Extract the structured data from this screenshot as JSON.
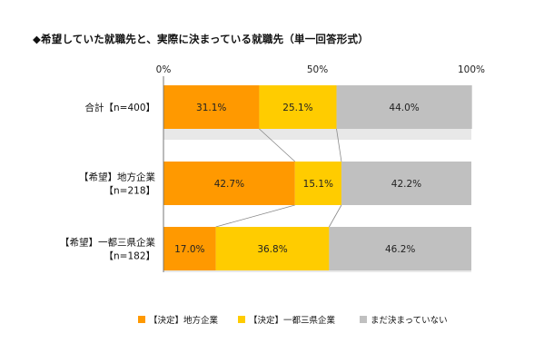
{
  "chart_data": {
    "type": "bar",
    "orientation": "horizontal",
    "stacked": "percent",
    "title": "◆希望していた就職先と、実際に決まっている就職先（単一回答形式）",
    "categories": [
      [
        "合計【n=400】"
      ],
      [
        "【希望】地方企業",
        "【n=218】"
      ],
      [
        "【希望】一都三県企業",
        "【n=182】"
      ]
    ],
    "series": [
      {
        "name": "【決定】地方企業",
        "color": "#ff9900",
        "values": [
          31.1,
          42.7,
          17.0
        ],
        "labels": [
          "31.1%",
          "42.7%",
          "17.0%"
        ]
      },
      {
        "name": "【決定】一都三県企業",
        "color": "#ffcc00",
        "values": [
          25.1,
          15.1,
          36.8
        ],
        "labels": [
          "25.1%",
          "15.1%",
          "36.8%"
        ]
      },
      {
        "name": "まだ決まっていない",
        "color": "#c0c0c0",
        "values": [
          44.0,
          42.2,
          46.2
        ],
        "labels": [
          "44.0%",
          "42.2%",
          "46.2%"
        ]
      }
    ],
    "x_ticks": [
      "0%",
      "50%",
      "100%"
    ],
    "xlim": [
      0,
      100
    ],
    "legend_position": "bottom",
    "grid": false,
    "plot_background": "#e8e8e8"
  }
}
